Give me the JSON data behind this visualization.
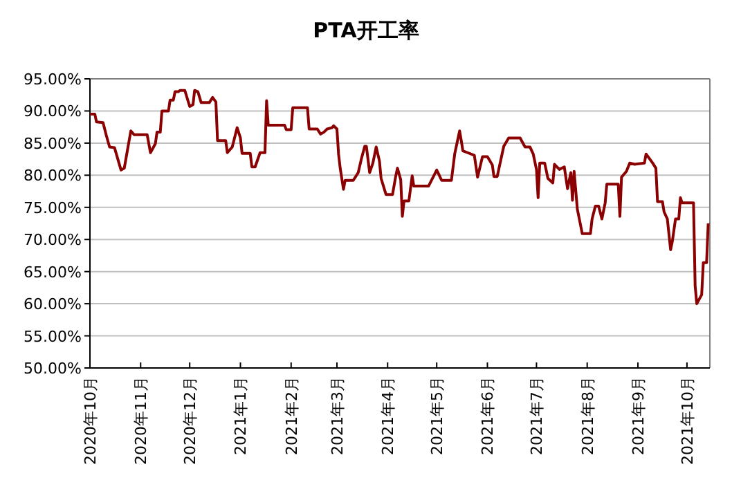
{
  "chart_data": {
    "type": "line",
    "title": "PTA开工率",
    "grid": "y",
    "xlim": [
      "2020-10-01",
      "2021-10-15"
    ],
    "xticks": [
      {
        "value": "2020-10",
        "label": "2020年10月"
      },
      {
        "value": "2020-11",
        "label": "2020年11月"
      },
      {
        "value": "2020-12",
        "label": "2020年12月"
      },
      {
        "value": "2021-01",
        "label": "2021年1月"
      },
      {
        "value": "2021-02",
        "label": "2021年2月"
      },
      {
        "value": "2021-03",
        "label": "2021年3月"
      },
      {
        "value": "2021-04",
        "label": "2021年4月"
      },
      {
        "value": "2021-05",
        "label": "2021年5月"
      },
      {
        "value": "2021-06",
        "label": "2021年6月"
      },
      {
        "value": "2021-07",
        "label": "2021年7月"
      },
      {
        "value": "2021-08",
        "label": "2021年8月"
      },
      {
        "value": "2021-09",
        "label": "2021年9月"
      },
      {
        "value": "2021-10",
        "label": "2021年10月"
      }
    ],
    "ylim": [
      50,
      95
    ],
    "yticks": [
      {
        "value": 50,
        "label": "50.00%"
      },
      {
        "value": 55,
        "label": "55.00%"
      },
      {
        "value": 60,
        "label": "60.00%"
      },
      {
        "value": 65,
        "label": "65.00%"
      },
      {
        "value": 70,
        "label": "70.00%"
      },
      {
        "value": 75,
        "label": "75.00%"
      },
      {
        "value": 80,
        "label": "80.00%"
      },
      {
        "value": 85,
        "label": "85.00%"
      },
      {
        "value": 90,
        "label": "90.00%"
      },
      {
        "value": 95,
        "label": "95.00%"
      }
    ],
    "x": [
      "2020-10-01",
      "2020-10-04",
      "2020-10-05",
      "2020-10-09",
      "2020-10-11",
      "2020-10-13",
      "2020-10-16",
      "2020-10-20",
      "2020-10-22",
      "2020-10-24",
      "2020-10-26",
      "2020-10-28",
      "2020-11-05",
      "2020-11-07",
      "2020-11-10",
      "2020-11-11",
      "2020-11-13",
      "2020-11-14",
      "2020-11-18",
      "2020-11-19",
      "2020-11-21",
      "2020-11-22",
      "2020-11-24",
      "2020-11-25",
      "2020-11-28",
      "2020-12-01",
      "2020-12-03",
      "2020-12-04",
      "2020-12-06",
      "2020-12-08",
      "2020-12-13",
      "2020-12-15",
      "2020-12-17",
      "2020-12-18",
      "2020-12-23",
      "2020-12-24",
      "2020-12-27",
      "2020-12-30",
      "2021-01-01",
      "2021-01-02",
      "2021-01-07",
      "2021-01-08",
      "2021-01-10",
      "2021-01-13",
      "2021-01-16",
      "2021-01-17",
      "2021-01-18",
      "2021-01-28",
      "2021-01-29",
      "2021-02-01",
      "2021-02-02",
      "2021-02-11",
      "2021-02-12",
      "2021-02-17",
      "2021-02-19",
      "2021-02-21",
      "2021-02-23",
      "2021-02-26",
      "2021-02-27",
      "2021-03-01",
      "2021-03-02",
      "2021-03-03",
      "2021-03-05",
      "2021-03-06",
      "2021-03-11",
      "2021-03-14",
      "2021-03-16",
      "2021-03-18",
      "2021-03-19",
      "2021-03-21",
      "2021-03-23",
      "2021-03-25",
      "2021-03-27",
      "2021-03-28",
      "2021-03-31",
      "2021-04-04",
      "2021-04-06",
      "2021-04-07",
      "2021-04-09",
      "2021-04-10",
      "2021-04-11",
      "2021-04-14",
      "2021-04-16",
      "2021-04-17",
      "2021-04-26",
      "2021-05-01",
      "2021-05-02",
      "2021-05-04",
      "2021-05-10",
      "2021-05-12",
      "2021-05-15",
      "2021-05-16",
      "2021-05-17",
      "2021-05-21",
      "2021-05-24",
      "2021-05-26",
      "2021-05-29",
      "2021-06-01",
      "2021-06-04",
      "2021-06-05",
      "2021-06-07",
      "2021-06-11",
      "2021-06-14",
      "2021-06-21",
      "2021-06-24",
      "2021-06-27",
      "2021-06-29",
      "2021-07-01",
      "2021-07-02",
      "2021-07-03",
      "2021-07-06",
      "2021-07-08",
      "2021-07-11",
      "2021-07-12",
      "2021-07-15",
      "2021-07-18",
      "2021-07-20",
      "2021-07-22",
      "2021-07-23",
      "2021-07-24",
      "2021-07-26",
      "2021-07-29",
      "2021-08-03",
      "2021-08-04",
      "2021-08-06",
      "2021-08-08",
      "2021-08-10",
      "2021-08-12",
      "2021-08-13",
      "2021-08-20",
      "2021-08-21",
      "2021-08-22",
      "2021-08-25",
      "2021-08-27",
      "2021-08-30",
      "2021-09-05",
      "2021-09-06",
      "2021-09-10",
      "2021-09-12",
      "2021-09-13",
      "2021-09-16",
      "2021-09-17",
      "2021-09-19",
      "2021-09-21",
      "2021-09-22",
      "2021-09-24",
      "2021-09-26",
      "2021-09-27",
      "2021-09-28",
      "2021-10-05",
      "2021-10-06",
      "2021-10-07",
      "2021-10-10",
      "2021-10-11",
      "2021-10-13",
      "2021-10-14"
    ],
    "series": [
      {
        "color": "#8b0000",
        "values": [
          89.5,
          89.5,
          88.3,
          88.2,
          86.2,
          84.4,
          84.3,
          80.8,
          81.1,
          84.0,
          86.9,
          86.3,
          86.3,
          83.5,
          84.9,
          86.7,
          86.7,
          90.0,
          90.0,
          91.7,
          91.7,
          93.0,
          93.0,
          93.2,
          93.2,
          90.7,
          91.0,
          93.2,
          93.0,
          91.3,
          91.3,
          92.1,
          91.4,
          85.4,
          85.4,
          83.5,
          84.4,
          87.4,
          85.8,
          83.4,
          83.4,
          81.3,
          81.3,
          83.5,
          83.5,
          91.6,
          87.8,
          87.8,
          87.1,
          87.1,
          90.5,
          90.5,
          87.2,
          87.2,
          86.4,
          86.7,
          87.2,
          87.4,
          87.7,
          87.2,
          83.3,
          81.1,
          77.8,
          79.2,
          79.2,
          80.4,
          82.6,
          84.5,
          84.5,
          80.4,
          81.9,
          84.4,
          82.2,
          79.5,
          77.0,
          77.0,
          79.9,
          81.1,
          79.3,
          73.6,
          76.0,
          76.0,
          79.9,
          78.3,
          78.3,
          80.8,
          80.3,
          79.2,
          79.2,
          83.3,
          86.9,
          85.4,
          83.8,
          83.4,
          83.1,
          79.7,
          82.9,
          82.9,
          81.6,
          79.8,
          79.8,
          84.5,
          85.8,
          85.8,
          84.4,
          84.4,
          83.3,
          80.9,
          76.5,
          81.9,
          81.9,
          79.5,
          78.8,
          81.7,
          80.9,
          81.3,
          77.9,
          80.4,
          76.1,
          80.6,
          74.7,
          70.9,
          70.9,
          73.2,
          75.2,
          75.2,
          73.2,
          75.7,
          78.6,
          78.6,
          73.6,
          79.7,
          80.6,
          81.9,
          81.7,
          81.9,
          83.3,
          81.9,
          81.1,
          75.9,
          75.9,
          74.3,
          73.2,
          68.4,
          69.6,
          73.2,
          73.2,
          76.5,
          75.7,
          75.7,
          62.8,
          60.0,
          61.4,
          66.4,
          66.4,
          72.5
        ]
      }
    ]
  }
}
